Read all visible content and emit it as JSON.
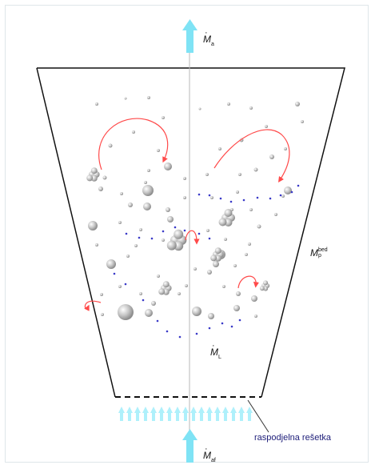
{
  "labels": {
    "outflow": {
      "symbol": "M",
      "sub": "a"
    },
    "inflow": {
      "symbol": "M",
      "sub": "af"
    },
    "bed": {
      "symbol": "M",
      "sub": "p",
      "sup": "bed"
    },
    "loss": {
      "symbol": "M",
      "sub": "L"
    }
  },
  "grid_label": "raspodjelna rešetka",
  "colors": {
    "vessel": "#111111",
    "flow_arrow": "#7fe3f5",
    "particle": "#bdbdbd",
    "recirculation_arrow": "#ff4a4a",
    "fines": "#3a3ac8",
    "grid_label": "#1c1c78"
  },
  "icons": {
    "up-arrow": "flow-arrow-icon",
    "particles": "particle-cluster-icon",
    "recirculation": "curved-arrow-icon"
  }
}
